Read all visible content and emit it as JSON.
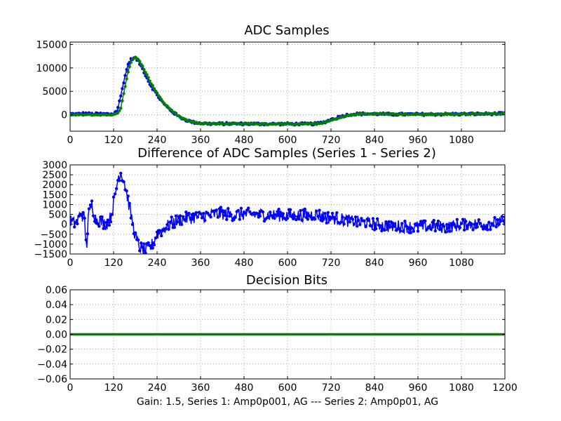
{
  "figure_xlabel": "Gain: 1.5, Series 1: Amp0p001, AG --- Series 2: Amp0p01, AG",
  "colors": {
    "series1": "#0000ff",
    "series2": "#008000"
  },
  "chart_data": [
    {
      "type": "line",
      "title": "ADC Samples",
      "xlim": [
        0,
        1200
      ],
      "ylim": [
        -3500,
        15500
      ],
      "xticks": [
        0,
        120,
        240,
        360,
        480,
        600,
        720,
        840,
        960,
        1080
      ],
      "xtick_labels": [
        "0",
        "120",
        "240",
        "360",
        "480",
        "600",
        "720",
        "840",
        "960",
        "1080"
      ],
      "yticks": [
        0,
        5000,
        10000,
        15000
      ],
      "ytick_labels": [
        "0",
        "5000",
        "10000",
        "15000"
      ],
      "grid": true,
      "series": [
        {
          "name": "Series 1",
          "color": "#0000ff",
          "marker": "circle",
          "x": [
            0,
            20,
            40,
            60,
            80,
            100,
            120,
            130,
            140,
            150,
            160,
            170,
            180,
            190,
            200,
            210,
            220,
            240,
            260,
            280,
            300,
            320,
            340,
            360,
            380,
            420,
            480,
            540,
            600,
            660,
            680,
            700,
            720,
            740,
            760,
            780,
            800,
            840,
            880,
            960,
            1080,
            1200
          ],
          "y": [
            200,
            150,
            300,
            150,
            200,
            150,
            200,
            1000,
            4000,
            7800,
            10800,
            12000,
            12100,
            11200,
            9800,
            8200,
            6600,
            4200,
            2200,
            800,
            -400,
            -1100,
            -1600,
            -1800,
            -1900,
            -1900,
            -1900,
            -1950,
            -1950,
            -1950,
            -1900,
            -1600,
            -1000,
            -500,
            -100,
            150,
            200,
            200,
            100,
            100,
            150,
            250
          ]
        },
        {
          "name": "Series 2",
          "color": "#008000",
          "marker": "circle",
          "x": [
            0,
            20,
            40,
            60,
            80,
            100,
            120,
            130,
            140,
            150,
            160,
            170,
            180,
            190,
            200,
            210,
            220,
            240,
            260,
            280,
            300,
            320,
            340,
            360,
            380,
            420,
            480,
            540,
            600,
            660,
            680,
            700,
            720,
            740,
            760,
            780,
            800,
            840,
            880,
            960,
            1080,
            1200
          ],
          "y": [
            0,
            0,
            0,
            0,
            0,
            0,
            50,
            200,
            1500,
            5300,
            9200,
            11800,
            12200,
            11600,
            10400,
            8800,
            7200,
            4600,
            2400,
            900,
            -300,
            -1100,
            -1600,
            -1800,
            -1900,
            -1900,
            -1900,
            -1950,
            -1950,
            -1950,
            -1950,
            -1700,
            -1200,
            -700,
            -300,
            0,
            150,
            200,
            150,
            100,
            150,
            250
          ]
        }
      ]
    },
    {
      "type": "line",
      "title": "Difference of ADC Samples (Series 1 - Series 2)",
      "xlim": [
        0,
        1200
      ],
      "ylim": [
        -1500,
        3000
      ],
      "xticks": [
        0,
        120,
        240,
        360,
        480,
        600,
        720,
        840,
        960,
        1080
      ],
      "xtick_labels": [
        "0",
        "120",
        "240",
        "360",
        "480",
        "600",
        "720",
        "840",
        "960",
        "1080"
      ],
      "yticks": [
        -1500,
        -1000,
        -500,
        0,
        500,
        1000,
        1500,
        2000,
        2500,
        3000
      ],
      "ytick_labels": [
        "−1500",
        "−1000",
        "−500",
        "0",
        "500",
        "1000",
        "1500",
        "2000",
        "2500",
        "3000"
      ],
      "grid": true,
      "series": [
        {
          "name": "Series 1 - Series 2",
          "color": "#0000ff",
          "marker": "circle",
          "x": [
            0,
            10,
            20,
            30,
            40,
            45,
            50,
            60,
            70,
            80,
            90,
            100,
            110,
            115,
            120,
            125,
            130,
            135,
            140,
            145,
            150,
            155,
            160,
            170,
            180,
            190,
            200,
            210,
            220,
            230,
            240,
            260,
            280,
            300,
            320,
            340,
            360,
            380,
            400,
            420,
            440,
            460,
            480,
            520,
            560,
            600,
            640,
            680,
            720,
            740,
            760,
            780,
            800,
            840,
            880,
            920,
            960,
            1000,
            1040,
            1080,
            1120,
            1160,
            1200
          ],
          "y": [
            100,
            50,
            150,
            600,
            200,
            -1300,
            400,
            1000,
            300,
            200,
            100,
            0,
            300,
            600,
            1100,
            1500,
            2100,
            2500,
            2600,
            2400,
            2100,
            1700,
            1200,
            300,
            -600,
            -1100,
            -1300,
            -1300,
            -1200,
            -900,
            -500,
            -200,
            50,
            200,
            300,
            350,
            400,
            450,
            500,
            550,
            500,
            500,
            500,
            500,
            450,
            450,
            450,
            500,
            300,
            300,
            200,
            150,
            100,
            0,
            -100,
            -100,
            -150,
            -100,
            -150,
            0,
            0,
            50,
            100
          ]
        }
      ]
    },
    {
      "type": "line",
      "title": "Decision Bits",
      "xlim": [
        0,
        1200
      ],
      "ylim": [
        -0.06,
        0.06
      ],
      "xticks": [
        0,
        120,
        240,
        360,
        480,
        600,
        720,
        840,
        960,
        1080,
        1200
      ],
      "xtick_labels": [
        "0",
        "120",
        "240",
        "360",
        "480",
        "600",
        "720",
        "840",
        "960",
        "1080",
        "1200"
      ],
      "yticks": [
        -0.06,
        -0.04,
        -0.02,
        0.0,
        0.02,
        0.04,
        0.06
      ],
      "ytick_labels": [
        "−0.06",
        "−0.04",
        "−0.02",
        "0.00",
        "0.02",
        "0.04",
        "0.06"
      ],
      "grid": true,
      "series": [
        {
          "name": "Decision Bits",
          "color": "#008000",
          "marker": "circle",
          "x": [
            0,
            1200
          ],
          "y": [
            0,
            0
          ]
        }
      ]
    }
  ]
}
